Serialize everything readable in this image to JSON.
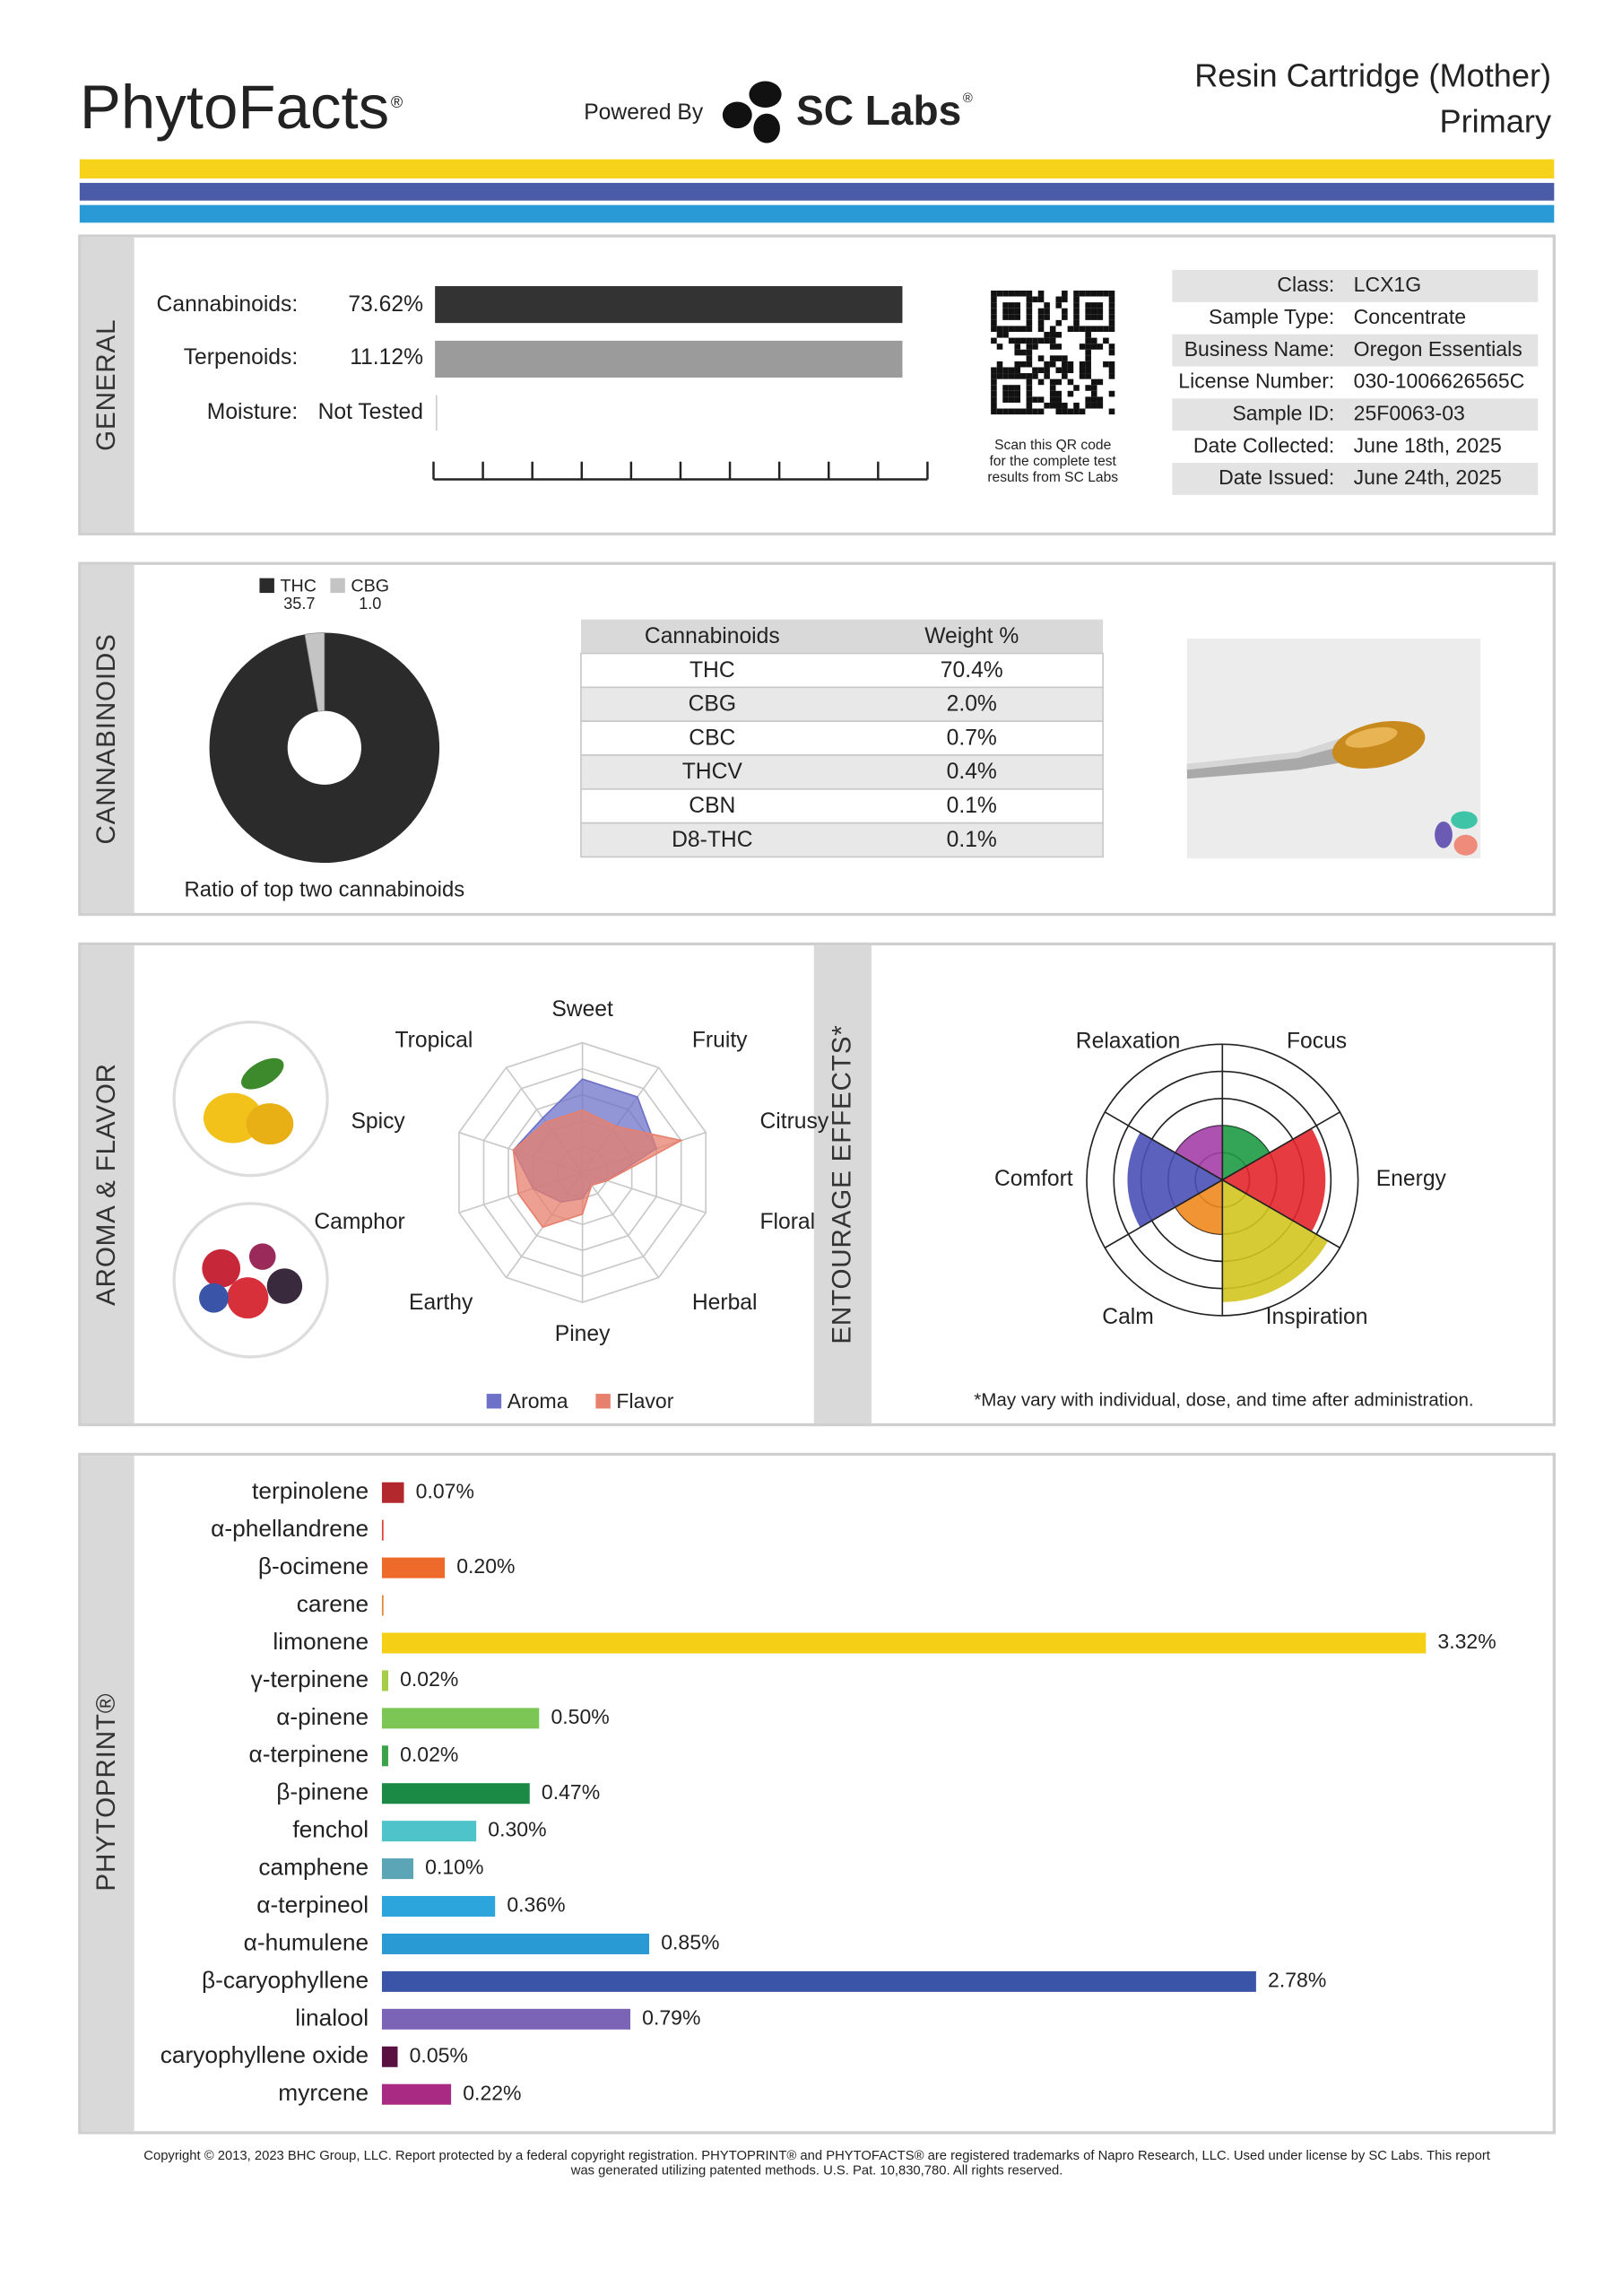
{
  "header": {
    "brand": "PhytoFacts",
    "registered": "®",
    "powered_by": "Powered By",
    "lab": "SC Labs",
    "product": "Resin Cartridge (Mother)",
    "grade": "Primary"
  },
  "general": {
    "section": "GENERAL",
    "potency": [
      {
        "label": "Cannabinoids:",
        "value": "73.62%"
      },
      {
        "label": "Terpenoids:",
        "value": "11.12%"
      },
      {
        "label": "Moisture:",
        "value": "Not Tested"
      }
    ],
    "qr_caption": [
      "Scan this QR code",
      "for the complete test",
      "results from SC Labs"
    ],
    "info": [
      [
        "Class:",
        "LCX1G"
      ],
      [
        "Sample Type:",
        "Concentrate"
      ],
      [
        "Business Name:",
        "Oregon Essentials"
      ],
      [
        "License Number:",
        "030-1006626565C"
      ],
      [
        "Sample ID:",
        "25F0063-03"
      ],
      [
        "Date Collected:",
        "June 18th, 2025"
      ],
      [
        "Date Issued:",
        "June 24th, 2025"
      ]
    ]
  },
  "cannabinoids": {
    "section": "CANNABINOIDS",
    "table": {
      "header": [
        "Cannabinoids",
        "Weight %"
      ],
      "rows": [
        [
          "THC",
          "70.4%"
        ],
        [
          "CBG",
          "2.0%"
        ],
        [
          "CBC",
          "0.7%"
        ],
        [
          "THCV",
          "0.4%"
        ],
        [
          "CBN",
          "0.1%"
        ],
        [
          "D8-THC",
          "0.1%"
        ]
      ]
    }
  },
  "aroma": {
    "section": "AROMA & FLAVOR"
  },
  "effects": {
    "section": "ENTOURAGE EFFECTS*",
    "note": "*May vary with individual, dose, and time after administration."
  },
  "phytoprint": {
    "section": "PHYTOPRINT®"
  },
  "footer": [
    "Copyright © 2013, 2023 BHC Group, LLC. Report protected by a federal copyright registration. PHYTOPRINT® and PHYTOFACTS® are registered trademarks of Napro Research, LLC. Used under license by SC Labs. This report",
    "was generated utilizing patented methods. U.S. Pat. 10,830,780. All rights reserved."
  ],
  "chart_data": [
    {
      "type": "pie",
      "caption": "Ratio of top two cannabinoids",
      "categories": [
        "THC",
        "CBG"
      ],
      "values": [
        35.7,
        1.0
      ],
      "value_labels": [
        "35.7",
        "1.0"
      ],
      "colors": [
        "#2b2b2b",
        "#c4c4c4"
      ]
    },
    {
      "type": "radar",
      "categories": [
        "Sweet",
        "Fruity",
        "Citrusy",
        "Floral",
        "Herbal",
        "Piney",
        "Earthy",
        "Camphor",
        "Spicy",
        "Tropical"
      ],
      "rlim": [
        0,
        5
      ],
      "rticks": [
        1,
        2,
        3,
        4,
        5
      ],
      "series": [
        {
          "name": "Aroma",
          "color": "#6d72c8",
          "values": [
            3.6,
            3.6,
            3.0,
            1.0,
            0.6,
            1.0,
            1.4,
            2.0,
            2.8,
            2.6
          ]
        },
        {
          "name": "Flavor",
          "color": "#e7806c",
          "values": [
            2.4,
            2.2,
            4.0,
            1.0,
            0.6,
            1.6,
            2.6,
            2.6,
            2.8,
            2.4
          ]
        }
      ]
    },
    {
      "type": "polar-area",
      "categories": [
        "Focus",
        "Energy",
        "Inspiration",
        "Calm",
        "Comfort",
        "Relaxation"
      ],
      "values": [
        2.0,
        3.8,
        4.5,
        2.0,
        3.5,
        2.0
      ],
      "colors": [
        "#1e9a45",
        "#e3262b",
        "#d2c41f",
        "#f08a1e",
        "#4a50b6",
        "#a53fa8"
      ],
      "rlim": [
        0,
        5
      ],
      "rticks": [
        1,
        2,
        3,
        4,
        5
      ]
    },
    {
      "type": "hbar",
      "categories": [
        "terpinolene",
        "α-phellandrene",
        "β-ocimene",
        "carene",
        "limonene",
        "γ-terpinene",
        "α-pinene",
        "α-terpinene",
        "β-pinene",
        "fenchol",
        "camphene",
        "α-terpineol",
        "α-humulene",
        "β-caryophyllene",
        "linalool",
        "caryophyllene oxide",
        "myrcene"
      ],
      "values": [
        0.07,
        0.005,
        0.2,
        0.005,
        3.32,
        0.02,
        0.5,
        0.02,
        0.47,
        0.3,
        0.1,
        0.36,
        0.85,
        2.78,
        0.79,
        0.05,
        0.22
      ],
      "value_labels": [
        "0.07%",
        null,
        "0.20%",
        null,
        "3.32%",
        "0.02%",
        "0.50%",
        "0.02%",
        "0.47%",
        "0.30%",
        "0.10%",
        "0.36%",
        "0.85%",
        "2.78%",
        "0.79%",
        "0.05%",
        "0.22%"
      ],
      "colors": [
        "#b3282d",
        "#d9453b",
        "#ee6a2b",
        "#e0883a",
        "#f5cf16",
        "#a5cd48",
        "#7cc656",
        "#3da34a",
        "#1a8a45",
        "#4fc3ca",
        "#5ba5b7",
        "#2ba5dc",
        "#2a9ad5",
        "#3a55a8",
        "#7b64b6",
        "#5a1040",
        "#a82a82"
      ]
    }
  ]
}
